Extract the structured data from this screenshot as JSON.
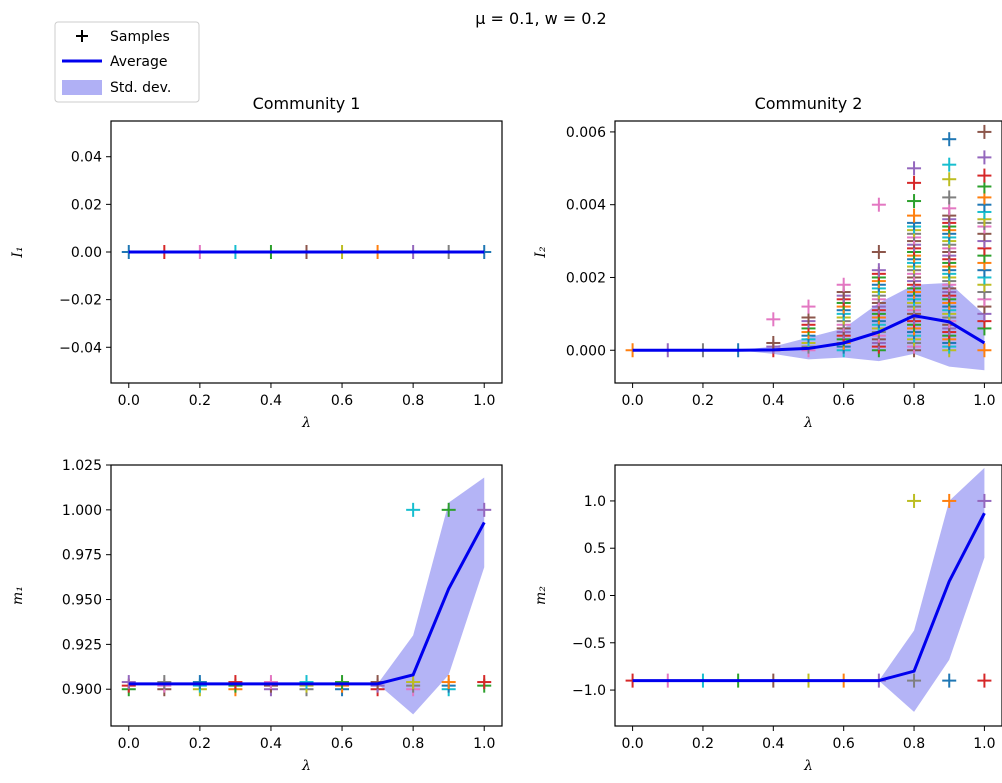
{
  "figure": {
    "suptitle": "μ = 0.1, w = 0.2",
    "legend": {
      "placement": "top-left",
      "samples_label": "Samples",
      "average_label": "Average",
      "std_label": "Std. dev.",
      "average_color": "#0000ee",
      "std_color": "#b0b0f5"
    }
  },
  "palette": [
    "#1f77b4",
    "#ff7f0e",
    "#2ca02c",
    "#d62728",
    "#9467bd",
    "#8c564b",
    "#e377c2",
    "#7f7f7f",
    "#bcbd22",
    "#17becf"
  ],
  "chart_data": [
    {
      "type": "line",
      "title": "Community 1",
      "xlabel": "λ",
      "ylabel": "I₁",
      "x": [
        0.0,
        0.1,
        0.2,
        0.3,
        0.4,
        0.5,
        0.6,
        0.7,
        0.8,
        0.9,
        1.0
      ],
      "xlim": [
        -0.05,
        1.05
      ],
      "ylim": [
        -0.055,
        0.055
      ],
      "xticks": [
        "0.0",
        "0.2",
        "0.4",
        "0.6",
        "0.8",
        "1.0"
      ],
      "yticks": [
        "−0.04",
        "−0.02",
        "0.00",
        "0.02",
        "0.04"
      ],
      "ytick_values": [
        -0.04,
        -0.02,
        0.0,
        0.02,
        0.04
      ],
      "xtick_values": [
        0.0,
        0.2,
        0.4,
        0.6,
        0.8,
        1.0
      ],
      "average": [
        0,
        0,
        0,
        0,
        0,
        0,
        0,
        0,
        0,
        0,
        0
      ],
      "std_low": [
        0,
        0,
        0,
        0,
        0,
        0,
        0,
        0,
        0,
        0,
        0
      ],
      "std_high": [
        0,
        0,
        0,
        0,
        0,
        0,
        0,
        0,
        0,
        0,
        0
      ],
      "samples": [
        {
          "x": 0.0,
          "y": [
            0
          ]
        },
        {
          "x": 0.1,
          "y": [
            0
          ]
        },
        {
          "x": 0.2,
          "y": [
            0
          ]
        },
        {
          "x": 0.3,
          "y": [
            0
          ]
        },
        {
          "x": 0.4,
          "y": [
            0
          ]
        },
        {
          "x": 0.5,
          "y": [
            0
          ]
        },
        {
          "x": 0.6,
          "y": [
            0
          ]
        },
        {
          "x": 0.7,
          "y": [
            0
          ]
        },
        {
          "x": 0.8,
          "y": [
            0
          ]
        },
        {
          "x": 0.9,
          "y": [
            0
          ]
        },
        {
          "x": 1.0,
          "y": [
            0
          ]
        }
      ]
    },
    {
      "type": "line",
      "title": "Community 2",
      "xlabel": "λ",
      "ylabel": "I₂",
      "x": [
        0.0,
        0.1,
        0.2,
        0.3,
        0.4,
        0.5,
        0.6,
        0.7,
        0.8,
        0.9,
        1.0
      ],
      "xlim": [
        -0.05,
        1.05
      ],
      "ylim": [
        -0.0009,
        0.0063
      ],
      "xticks": [
        "0.0",
        "0.2",
        "0.4",
        "0.6",
        "0.8",
        "1.0"
      ],
      "yticks": [
        "0.000",
        "0.002",
        "0.004",
        "0.006"
      ],
      "ytick_values": [
        0.0,
        0.002,
        0.004,
        0.006
      ],
      "xtick_values": [
        0.0,
        0.2,
        0.4,
        0.6,
        0.8,
        1.0
      ],
      "average": [
        0,
        0,
        0,
        0,
        1e-05,
        5e-05,
        0.0002,
        0.0005,
        0.00095,
        0.00078,
        0.0002
      ],
      "std_low": [
        0,
        0,
        0,
        0,
        -0.0001,
        -0.00025,
        -0.0002,
        -0.0003,
        -0.0001,
        -0.00045,
        -0.00055
      ],
      "std_high": [
        0,
        0,
        0,
        0,
        0.0001,
        0.00035,
        0.0006,
        0.0013,
        0.0018,
        0.00185,
        0.00098
      ],
      "samples": [
        {
          "x": 0.0,
          "y": [
            0
          ]
        },
        {
          "x": 0.1,
          "y": [
            0
          ]
        },
        {
          "x": 0.2,
          "y": [
            0
          ]
        },
        {
          "x": 0.3,
          "y": [
            0
          ]
        },
        {
          "x": 0.4,
          "y": [
            0,
            0.0001,
            0.0002,
            0.00085
          ]
        },
        {
          "x": 0.5,
          "y": [
            0,
            0.0001,
            0.0002,
            0.0003,
            0.0004,
            0.0005,
            0.0006,
            0.0007,
            0.0008,
            0.0009,
            0.0012
          ]
        },
        {
          "x": 0.6,
          "y": [
            0,
            0.0001,
            0.0002,
            0.0003,
            0.0004,
            0.0005,
            0.0006,
            0.0007,
            0.0008,
            0.0009,
            0.001,
            0.0011,
            0.0012,
            0.0013,
            0.0014,
            0.0015,
            0.0016,
            0.0018
          ]
        },
        {
          "x": 0.7,
          "y": [
            0,
            0.0001,
            0.0002,
            0.0003,
            0.0004,
            0.0005,
            0.0006,
            0.0007,
            0.0008,
            0.0009,
            0.001,
            0.0011,
            0.0012,
            0.0013,
            0.0014,
            0.0015,
            0.0016,
            0.0017,
            0.0018,
            0.0019,
            0.002,
            0.0021,
            0.0022,
            0.0027,
            0.004
          ]
        },
        {
          "x": 0.8,
          "y": [
            0,
            0.0001,
            0.0002,
            0.0003,
            0.0004,
            0.0005,
            0.0006,
            0.0007,
            0.0008,
            0.0009,
            0.001,
            0.0011,
            0.0012,
            0.0013,
            0.0014,
            0.0015,
            0.0016,
            0.0017,
            0.0018,
            0.0019,
            0.002,
            0.0021,
            0.0022,
            0.0023,
            0.0024,
            0.0025,
            0.0026,
            0.0027,
            0.0028,
            0.0029,
            0.003,
            0.0031,
            0.0032,
            0.0033,
            0.0034,
            0.0035,
            0.0037,
            0.0041,
            0.0046,
            0.005
          ]
        },
        {
          "x": 0.9,
          "y": [
            0,
            0.0001,
            0.0002,
            0.0003,
            0.0004,
            0.0005,
            0.0006,
            0.0007,
            0.0008,
            0.0009,
            0.001,
            0.0011,
            0.0012,
            0.0013,
            0.0014,
            0.0015,
            0.0016,
            0.0017,
            0.0018,
            0.0019,
            0.002,
            0.0021,
            0.0022,
            0.0023,
            0.0024,
            0.0025,
            0.0026,
            0.0027,
            0.0028,
            0.0029,
            0.003,
            0.0031,
            0.0032,
            0.0033,
            0.0034,
            0.0035,
            0.0036,
            0.0037,
            0.0039,
            0.0042,
            0.0047,
            0.0051,
            0.0058
          ]
        },
        {
          "x": 1.0,
          "y": [
            0,
            0.0006,
            0.0008,
            0.001,
            0.0012,
            0.0014,
            0.0016,
            0.0018,
            0.002,
            0.0022,
            0.0024,
            0.0026,
            0.0028,
            0.003,
            0.0032,
            0.0034,
            0.0035,
            0.0036,
            0.0038,
            0.004,
            0.0042,
            0.0045,
            0.0048,
            0.0053,
            0.006
          ]
        }
      ]
    },
    {
      "type": "line",
      "title": "",
      "xlabel": "λ",
      "ylabel": "m₁",
      "x": [
        0.0,
        0.1,
        0.2,
        0.3,
        0.4,
        0.5,
        0.6,
        0.7,
        0.8,
        0.9,
        1.0
      ],
      "xlim": [
        -0.05,
        1.05
      ],
      "ylim": [
        0.8795,
        1.025
      ],
      "xticks": [
        "0.0",
        "0.2",
        "0.4",
        "0.6",
        "0.8",
        "1.0"
      ],
      "yticks": [
        "0.900",
        "0.925",
        "0.950",
        "0.975",
        "1.000",
        "1.025"
      ],
      "ytick_values": [
        0.9,
        0.925,
        0.95,
        0.975,
        1.0,
        1.025
      ],
      "xtick_values": [
        0.0,
        0.2,
        0.4,
        0.6,
        0.8,
        1.0
      ],
      "average": [
        0.903,
        0.903,
        0.903,
        0.903,
        0.903,
        0.903,
        0.903,
        0.903,
        0.908,
        0.956,
        0.993
      ],
      "std_low": [
        0.903,
        0.903,
        0.903,
        0.903,
        0.903,
        0.903,
        0.903,
        0.903,
        0.886,
        0.908,
        0.968
      ],
      "std_high": [
        0.903,
        0.903,
        0.903,
        0.903,
        0.903,
        0.903,
        0.903,
        0.903,
        0.93,
        1.004,
        1.018
      ],
      "samples": [
        {
          "x": 0.0,
          "y": [
            0.9,
            0.902,
            0.904
          ]
        },
        {
          "x": 0.1,
          "y": [
            0.9,
            0.902,
            0.904
          ]
        },
        {
          "x": 0.2,
          "y": [
            0.9,
            0.902,
            0.904
          ]
        },
        {
          "x": 0.3,
          "y": [
            0.9,
            0.902,
            0.904
          ]
        },
        {
          "x": 0.4,
          "y": [
            0.9,
            0.902,
            0.904
          ]
        },
        {
          "x": 0.5,
          "y": [
            0.9,
            0.902,
            0.904
          ]
        },
        {
          "x": 0.6,
          "y": [
            0.9,
            0.902,
            0.904
          ]
        },
        {
          "x": 0.7,
          "y": [
            0.9,
            0.902,
            0.904
          ]
        },
        {
          "x": 0.8,
          "y": [
            0.9,
            0.902,
            0.904,
            1.0
          ]
        },
        {
          "x": 0.9,
          "y": [
            0.9,
            0.902,
            0.904,
            1.0
          ]
        },
        {
          "x": 1.0,
          "y": [
            0.902,
            0.904,
            1.0
          ]
        }
      ]
    },
    {
      "type": "line",
      "title": "",
      "xlabel": "λ",
      "ylabel": "m₂",
      "x": [
        0.0,
        0.1,
        0.2,
        0.3,
        0.4,
        0.5,
        0.6,
        0.7,
        0.8,
        0.9,
        1.0
      ],
      "xlim": [
        -0.05,
        1.05
      ],
      "ylim": [
        -1.38,
        1.38
      ],
      "xticks": [
        "0.0",
        "0.2",
        "0.4",
        "0.6",
        "0.8",
        "1.0"
      ],
      "yticks": [
        "−1.0",
        "−0.5",
        "0.0",
        "0.5",
        "1.0"
      ],
      "ytick_values": [
        -1.0,
        -0.5,
        0.0,
        0.5,
        1.0
      ],
      "xtick_values": [
        0.0,
        0.2,
        0.4,
        0.6,
        0.8,
        1.0
      ],
      "average": [
        -0.9,
        -0.9,
        -0.9,
        -0.9,
        -0.9,
        -0.9,
        -0.9,
        -0.9,
        -0.8,
        0.15,
        0.87
      ],
      "std_low": [
        -0.9,
        -0.9,
        -0.9,
        -0.9,
        -0.9,
        -0.9,
        -0.9,
        -0.9,
        -1.23,
        -0.68,
        0.4
      ],
      "std_high": [
        -0.9,
        -0.9,
        -0.9,
        -0.9,
        -0.9,
        -0.9,
        -0.9,
        -0.9,
        -0.37,
        1.0,
        1.35
      ],
      "samples": [
        {
          "x": 0.0,
          "y": [
            -0.9
          ]
        },
        {
          "x": 0.1,
          "y": [
            -0.9
          ]
        },
        {
          "x": 0.2,
          "y": [
            -0.9
          ]
        },
        {
          "x": 0.3,
          "y": [
            -0.9
          ]
        },
        {
          "x": 0.4,
          "y": [
            -0.9
          ]
        },
        {
          "x": 0.5,
          "y": [
            -0.9
          ]
        },
        {
          "x": 0.6,
          "y": [
            -0.9
          ]
        },
        {
          "x": 0.7,
          "y": [
            -0.9
          ]
        },
        {
          "x": 0.8,
          "y": [
            -0.9,
            1.0
          ]
        },
        {
          "x": 0.9,
          "y": [
            -0.9,
            1.0
          ]
        },
        {
          "x": 1.0,
          "y": [
            -0.9,
            1.0
          ]
        }
      ]
    }
  ]
}
